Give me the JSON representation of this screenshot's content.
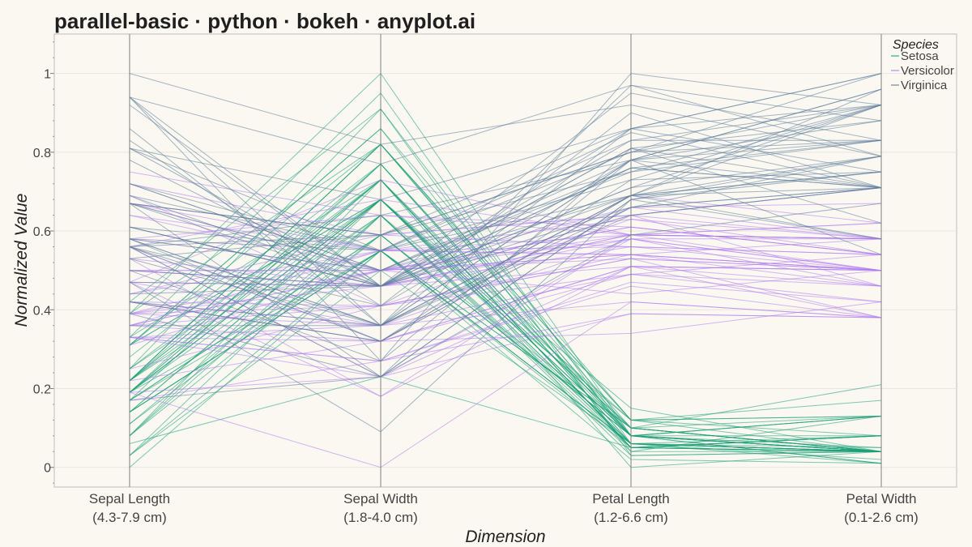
{
  "chart_data": {
    "type": "parallel",
    "title": "parallel-basic · python · bokeh · anyplot.ai",
    "xlabel": "Dimension",
    "ylabel": "Normalized Value",
    "ylim": [
      -0.05,
      1.1
    ],
    "yticks": [
      "0",
      "0.2",
      "0.4",
      "0.6",
      "0.8",
      "1"
    ],
    "grid": true,
    "legend_title": "Species",
    "legend_position": "top-right",
    "dimensions": [
      {
        "name": "Sepal Length",
        "range": "(4.3-7.9 cm)"
      },
      {
        "name": "Sepal Width",
        "range": "(1.8-4.0 cm)"
      },
      {
        "name": "Petal Length",
        "range": "(1.2-6.6 cm)"
      },
      {
        "name": "Petal Width",
        "range": "(0.1-2.6 cm)"
      }
    ],
    "series": [
      {
        "name": "Setosa",
        "color": "#1A9E77",
        "values": [
          [
            0.22,
            0.73,
            0.05,
            0.04
          ],
          [
            0.17,
            0.55,
            0.06,
            0.05
          ],
          [
            0.11,
            0.64,
            0.04,
            0.04
          ],
          [
            0.08,
            0.59,
            0.08,
            0.05
          ],
          [
            0.19,
            0.77,
            0.06,
            0.04
          ],
          [
            0.31,
            0.86,
            0.12,
            0.13
          ],
          [
            0.08,
            0.68,
            0.05,
            0.08
          ],
          [
            0.19,
            0.68,
            0.08,
            0.04
          ],
          [
            0.03,
            0.5,
            0.06,
            0.04
          ],
          [
            0.17,
            0.59,
            0.08,
            0.01
          ],
          [
            0.31,
            0.82,
            0.08,
            0.04
          ],
          [
            0.14,
            0.68,
            0.1,
            0.04
          ],
          [
            0.14,
            0.55,
            0.06,
            0.02
          ],
          [
            0.0,
            0.55,
            0.02,
            0.01
          ],
          [
            0.42,
            0.91,
            0.03,
            0.04
          ],
          [
            0.39,
            1.0,
            0.08,
            0.13
          ],
          [
            0.31,
            0.86,
            0.04,
            0.13
          ],
          [
            0.22,
            0.73,
            0.05,
            0.08
          ],
          [
            0.39,
            0.82,
            0.12,
            0.08
          ],
          [
            0.22,
            0.82,
            0.08,
            0.08
          ],
          [
            0.31,
            0.68,
            0.12,
            0.04
          ],
          [
            0.22,
            0.77,
            0.08,
            0.13
          ],
          [
            0.08,
            0.73,
            0.0,
            0.04
          ],
          [
            0.22,
            0.64,
            0.12,
            0.17
          ],
          [
            0.14,
            0.68,
            0.15,
            0.04
          ],
          [
            0.19,
            0.55,
            0.1,
            0.04
          ],
          [
            0.19,
            0.68,
            0.1,
            0.13
          ],
          [
            0.25,
            0.73,
            0.08,
            0.04
          ],
          [
            0.25,
            0.68,
            0.06,
            0.04
          ],
          [
            0.11,
            0.59,
            0.1,
            0.04
          ],
          [
            0.14,
            0.55,
            0.1,
            0.04
          ],
          [
            0.31,
            0.68,
            0.08,
            0.13
          ],
          [
            0.25,
            0.91,
            0.08,
            0.01
          ],
          [
            0.33,
            0.95,
            0.06,
            0.04
          ],
          [
            0.17,
            0.59,
            0.08,
            0.04
          ],
          [
            0.19,
            0.64,
            0.03,
            0.04
          ],
          [
            0.33,
            0.73,
            0.05,
            0.04
          ],
          [
            0.17,
            0.77,
            0.06,
            0.01
          ],
          [
            0.03,
            0.55,
            0.05,
            0.04
          ],
          [
            0.22,
            0.68,
            0.08,
            0.04
          ],
          [
            0.19,
            0.73,
            0.05,
            0.08
          ],
          [
            0.06,
            0.23,
            0.05,
            0.08
          ],
          [
            0.03,
            0.64,
            0.05,
            0.04
          ],
          [
            0.19,
            0.73,
            0.1,
            0.21
          ],
          [
            0.22,
            0.82,
            0.12,
            0.13
          ],
          [
            0.14,
            0.55,
            0.06,
            0.08
          ],
          [
            0.22,
            0.82,
            0.1,
            0.04
          ],
          [
            0.08,
            0.64,
            0.06,
            0.04
          ],
          [
            0.28,
            0.77,
            0.08,
            0.04
          ],
          [
            0.19,
            0.68,
            0.06,
            0.04
          ]
        ]
      },
      {
        "name": "Versicolor",
        "color": "#B07CF0",
        "values": [
          [
            0.75,
            0.64,
            0.61,
            0.54
          ],
          [
            0.58,
            0.64,
            0.59,
            0.58
          ],
          [
            0.72,
            0.59,
            0.64,
            0.58
          ],
          [
            0.33,
            0.23,
            0.51,
            0.5
          ],
          [
            0.61,
            0.46,
            0.58,
            0.58
          ],
          [
            0.39,
            0.46,
            0.59,
            0.5
          ],
          [
            0.56,
            0.68,
            0.59,
            0.62
          ],
          [
            0.17,
            0.27,
            0.39,
            0.38
          ],
          [
            0.64,
            0.5,
            0.58,
            0.5
          ],
          [
            0.25,
            0.41,
            0.49,
            0.54
          ],
          [
            0.19,
            0.0,
            0.42,
            0.38
          ],
          [
            0.44,
            0.55,
            0.54,
            0.58
          ],
          [
            0.47,
            0.18,
            0.51,
            0.38
          ],
          [
            0.5,
            0.5,
            0.61,
            0.54
          ],
          [
            0.36,
            0.5,
            0.44,
            0.5
          ],
          [
            0.67,
            0.59,
            0.56,
            0.54
          ],
          [
            0.36,
            0.55,
            0.59,
            0.58
          ],
          [
            0.42,
            0.41,
            0.53,
            0.38
          ],
          [
            0.53,
            0.18,
            0.59,
            0.58
          ],
          [
            0.36,
            0.32,
            0.49,
            0.42
          ],
          [
            0.44,
            0.59,
            0.64,
            0.71
          ],
          [
            0.5,
            0.46,
            0.51,
            0.5
          ],
          [
            0.56,
            0.32,
            0.66,
            0.58
          ],
          [
            0.5,
            0.46,
            0.64,
            0.46
          ],
          [
            0.58,
            0.5,
            0.54,
            0.5
          ],
          [
            0.64,
            0.55,
            0.56,
            0.54
          ],
          [
            0.69,
            0.41,
            0.63,
            0.54
          ],
          [
            0.67,
            0.5,
            0.66,
            0.67
          ],
          [
            0.47,
            0.46,
            0.59,
            0.58
          ],
          [
            0.39,
            0.36,
            0.42,
            0.38
          ],
          [
            0.33,
            0.27,
            0.47,
            0.42
          ],
          [
            0.33,
            0.27,
            0.46,
            0.38
          ],
          [
            0.42,
            0.36,
            0.49,
            0.46
          ],
          [
            0.47,
            0.36,
            0.69,
            0.62
          ],
          [
            0.31,
            0.5,
            0.59,
            0.58
          ],
          [
            0.47,
            0.73,
            0.59,
            0.62
          ],
          [
            0.67,
            0.55,
            0.63,
            0.58
          ],
          [
            0.56,
            0.23,
            0.58,
            0.5
          ],
          [
            0.36,
            0.5,
            0.53,
            0.5
          ],
          [
            0.33,
            0.32,
            0.51,
            0.5
          ],
          [
            0.33,
            0.36,
            0.58,
            0.46
          ],
          [
            0.5,
            0.5,
            0.61,
            0.54
          ],
          [
            0.42,
            0.32,
            0.51,
            0.46
          ],
          [
            0.19,
            0.23,
            0.39,
            0.38
          ],
          [
            0.36,
            0.41,
            0.54,
            0.5
          ],
          [
            0.39,
            0.55,
            0.54,
            0.46
          ],
          [
            0.39,
            0.5,
            0.54,
            0.5
          ],
          [
            0.53,
            0.46,
            0.56,
            0.5
          ],
          [
            0.22,
            0.32,
            0.34,
            0.42
          ],
          [
            0.39,
            0.41,
            0.53,
            0.5
          ]
        ]
      },
      {
        "name": "Virginica",
        "color": "#5D7B9A",
        "values": [
          [
            0.56,
            0.59,
            0.86,
            1.0
          ],
          [
            0.42,
            0.32,
            0.69,
            0.75
          ],
          [
            0.78,
            0.46,
            0.83,
            0.83
          ],
          [
            0.56,
            0.41,
            0.78,
            0.71
          ],
          [
            0.61,
            0.46,
            0.81,
            0.88
          ],
          [
            0.92,
            0.46,
            0.95,
            0.83
          ],
          [
            0.17,
            0.23,
            0.59,
            0.67
          ],
          [
            0.83,
            0.41,
            0.9,
            0.71
          ],
          [
            0.67,
            0.23,
            0.81,
            0.71
          ],
          [
            0.81,
            0.68,
            0.86,
            1.0
          ],
          [
            0.61,
            0.55,
            0.69,
            0.79
          ],
          [
            0.58,
            0.32,
            0.73,
            0.75
          ],
          [
            0.69,
            0.46,
            0.76,
            0.83
          ],
          [
            0.39,
            0.23,
            0.68,
            0.79
          ],
          [
            0.42,
            0.36,
            0.69,
            0.96
          ],
          [
            0.58,
            0.55,
            0.73,
            0.92
          ],
          [
            0.61,
            0.46,
            0.76,
            0.71
          ],
          [
            0.94,
            0.77,
            0.97,
            0.88
          ],
          [
            0.94,
            0.27,
            1.0,
            0.92
          ],
          [
            0.47,
            0.09,
            0.68,
            0.58
          ],
          [
            0.72,
            0.55,
            0.8,
            0.92
          ],
          [
            0.36,
            0.36,
            0.66,
            0.79
          ],
          [
            0.94,
            0.36,
            0.97,
            0.79
          ],
          [
            0.56,
            0.32,
            0.66,
            0.71
          ],
          [
            0.67,
            0.59,
            0.8,
            0.83
          ],
          [
            0.81,
            0.55,
            0.85,
            0.71
          ],
          [
            0.53,
            0.36,
            0.64,
            0.71
          ],
          [
            0.5,
            0.46,
            0.66,
            0.71
          ],
          [
            0.58,
            0.36,
            0.78,
            0.83
          ],
          [
            0.81,
            0.46,
            0.81,
            0.62
          ],
          [
            0.86,
            0.36,
            0.86,
            0.75
          ],
          [
            1.0,
            0.82,
            0.92,
            0.79
          ],
          [
            0.58,
            0.36,
            0.78,
            0.88
          ],
          [
            0.56,
            0.36,
            0.69,
            0.58
          ],
          [
            0.5,
            0.27,
            0.78,
            0.54
          ],
          [
            0.94,
            0.46,
            0.86,
            0.92
          ],
          [
            0.56,
            0.64,
            0.78,
            0.96
          ],
          [
            0.58,
            0.5,
            0.76,
            0.71
          ],
          [
            0.47,
            0.46,
            0.64,
            0.71
          ],
          [
            0.72,
            0.5,
            0.75,
            0.83
          ],
          [
            0.67,
            0.5,
            0.78,
            0.96
          ],
          [
            0.72,
            0.5,
            0.69,
            0.92
          ],
          [
            0.42,
            0.32,
            0.69,
            0.75
          ],
          [
            0.69,
            0.55,
            0.83,
            0.92
          ],
          [
            0.67,
            0.59,
            0.8,
            1.0
          ],
          [
            0.67,
            0.46,
            0.71,
            0.92
          ],
          [
            0.56,
            0.23,
            0.68,
            0.75
          ],
          [
            0.61,
            0.46,
            0.71,
            0.79
          ],
          [
            0.53,
            0.59,
            0.75,
            0.92
          ],
          [
            0.44,
            0.46,
            0.69,
            0.71
          ]
        ]
      }
    ]
  }
}
